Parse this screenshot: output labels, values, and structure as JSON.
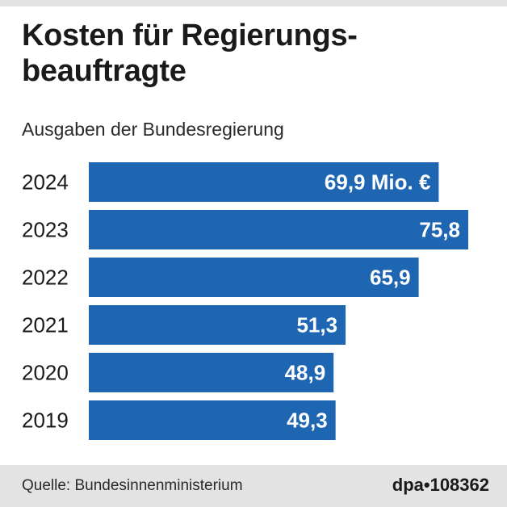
{
  "header": {
    "title": "Kosten für Regierungs-beauftragte",
    "subtitle": "Ausgaben der Bundesregierung"
  },
  "footer": {
    "source": "Quelle: Bundesinnenministerium",
    "agency": "dpa•108362"
  },
  "colors": {
    "bar": "#1f66b2",
    "bar_label": "#ffffff",
    "band": "#e3e3e3"
  },
  "chart_data": {
    "type": "bar",
    "orientation": "horizontal",
    "title": "Kosten für Regierungs-beauftragte",
    "subtitle": "Ausgaben der Bundesregierung",
    "unit": "Mio. €",
    "categories": [
      "2024",
      "2023",
      "2022",
      "2021",
      "2020",
      "2019"
    ],
    "values": [
      69.9,
      75.8,
      65.9,
      51.3,
      48.9,
      49.3
    ],
    "value_labels": [
      "69,9 Mio. €",
      "75,8",
      "65,9",
      "51,3",
      "48,9",
      "49,3"
    ],
    "xlim": [
      0,
      75.8
    ],
    "grid": false,
    "legend": "none"
  }
}
